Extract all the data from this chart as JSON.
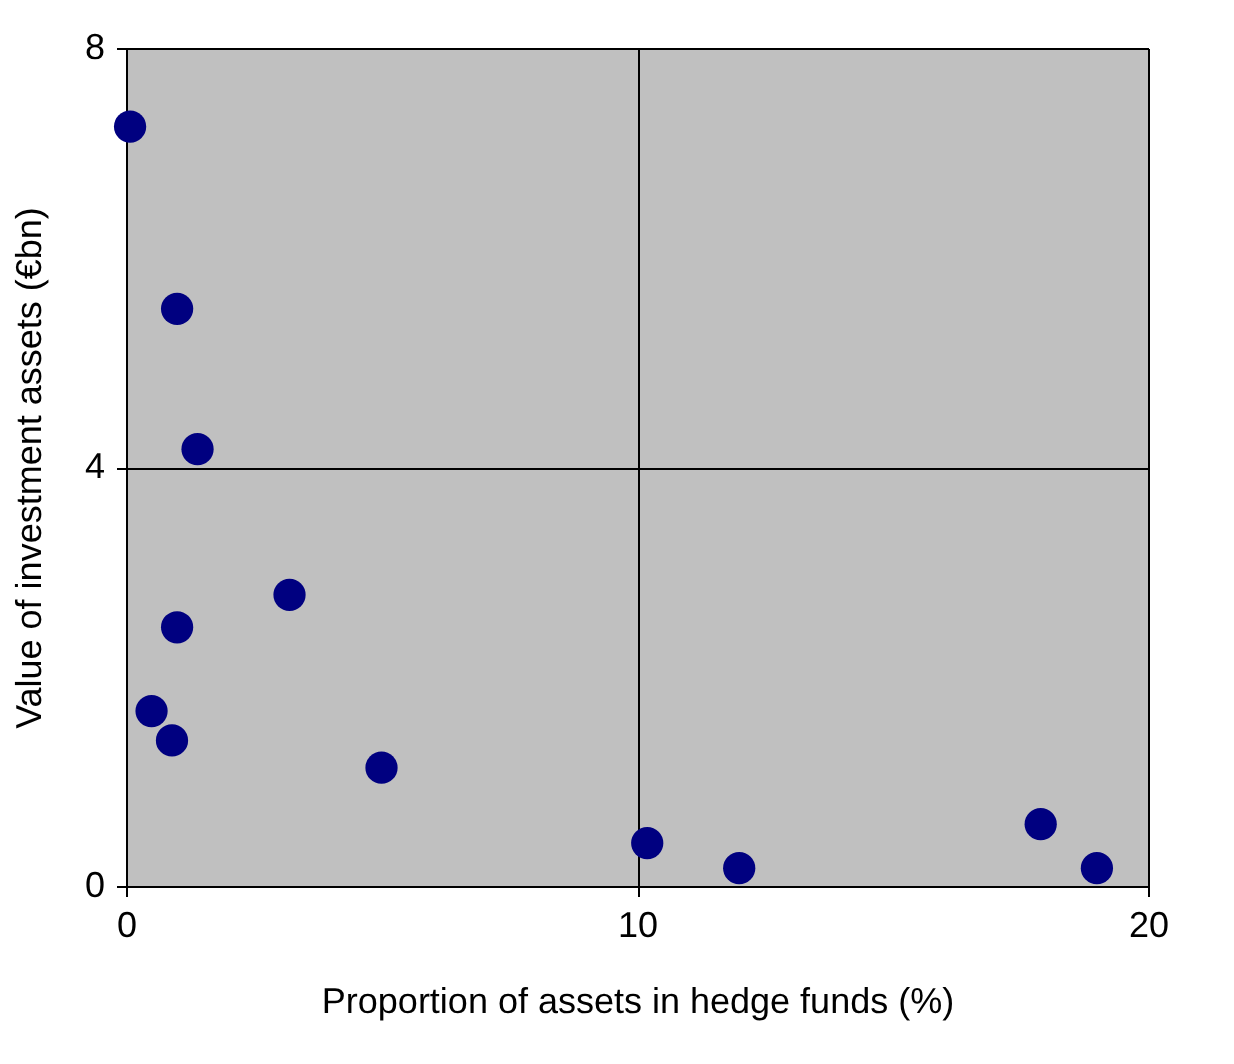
{
  "chart_data": {
    "type": "scatter",
    "xlabel": "Proportion of assets in hedge funds (%)",
    "ylabel": "Value of investment assets (€bn)",
    "x": [
      0.08,
      1.0,
      1.4,
      3.2,
      1.0,
      0.5,
      0.9,
      5.0,
      10.2,
      12.0,
      17.9,
      19.0
    ],
    "series": [
      {
        "color": "#000080",
        "values": [
          7.25,
          5.51,
          4.17,
          2.78,
          2.47,
          1.67,
          1.39,
          1.13,
          0.41,
          0.17,
          0.59,
          0.17
        ]
      }
    ],
    "xlim": [
      0,
      20
    ],
    "xticks": [
      0,
      10,
      20
    ],
    "ylim": [
      0,
      8
    ],
    "yticks": [
      0,
      4,
      8
    ],
    "grid": true,
    "marker": "circle"
  }
}
